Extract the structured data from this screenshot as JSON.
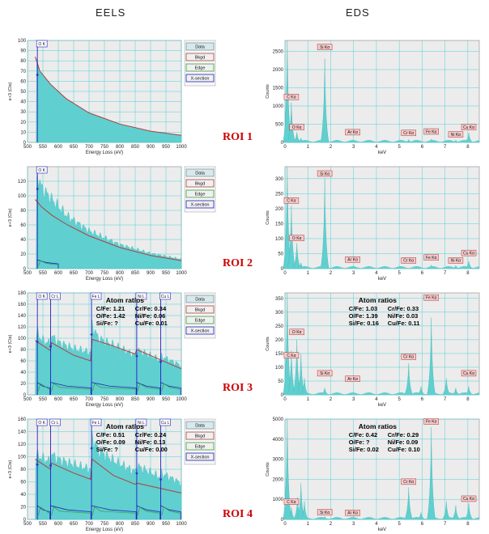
{
  "headers": {
    "eels": "EELS",
    "eds": "EDS"
  },
  "roi_labels": [
    "ROI 1",
    "ROI 2",
    "ROI 3",
    "ROI 4"
  ],
  "legend": [
    "Data",
    "Bkgd",
    "Edge",
    "X-section"
  ],
  "colors": {
    "fill": "#5fcfcf",
    "plot_bg": "#ececec",
    "grid": "#4fd0d8",
    "bkgd": "#b04040",
    "edge": "#3a9a3a",
    "xsec": "#2020c0",
    "marker": "#3030c8",
    "tag_bg": "#f4cccc",
    "tag_border": "#b03030",
    "roi_text": "#cc0000"
  },
  "chart_data": [
    {
      "type": "area",
      "panel": "EELS ROI 1",
      "xlabel": "Energy Loss (eV)",
      "ylabel": "e+3 (Cts)",
      "xlim": [
        500,
        1000
      ],
      "ylim": [
        0,
        100
      ],
      "xticks": [
        500,
        550,
        600,
        650,
        700,
        750,
        800,
        850,
        900,
        950,
        1000
      ],
      "yticks": [
        0,
        10,
        20,
        30,
        40,
        50,
        60,
        70,
        80,
        90,
        100
      ],
      "signal": [
        [
          528,
          84
        ],
        [
          540,
          70
        ],
        [
          575,
          57
        ],
        [
          625,
          43
        ],
        [
          700,
          29
        ],
        [
          800,
          18
        ],
        [
          900,
          11
        ],
        [
          1000,
          7
        ]
      ],
      "bkgd": [
        [
          525,
          84
        ],
        [
          540,
          70
        ],
        [
          575,
          57
        ],
        [
          625,
          43
        ],
        [
          700,
          29
        ],
        [
          800,
          18
        ],
        [
          900,
          11
        ],
        [
          1000,
          7
        ]
      ],
      "edges": [
        {
          "label": "O K",
          "x": 532
        }
      ],
      "ratios": null
    },
    {
      "type": "area",
      "panel": "EELS ROI 2",
      "xlabel": "Energy Loss (eV)",
      "ylabel": "e+3 (Cts)",
      "xlim": [
        500,
        1000
      ],
      "ylim": [
        0,
        140
      ],
      "xticks": [
        500,
        550,
        600,
        650,
        700,
        750,
        800,
        850,
        900,
        950,
        1000
      ],
      "yticks": [
        0,
        20,
        40,
        60,
        80,
        100,
        120
      ],
      "signal": [
        [
          528,
          110
        ],
        [
          532,
          130
        ],
        [
          545,
          112
        ],
        [
          580,
          95
        ],
        [
          630,
          72
        ],
        [
          700,
          52
        ],
        [
          800,
          33
        ],
        [
          900,
          21
        ],
        [
          1000,
          13
        ]
      ],
      "bkgd": [
        [
          525,
          95
        ],
        [
          545,
          85
        ],
        [
          580,
          73
        ],
        [
          630,
          60
        ],
        [
          700,
          45
        ],
        [
          800,
          29
        ],
        [
          900,
          18
        ],
        [
          1000,
          11
        ]
      ],
      "edges": [
        {
          "label": "O K",
          "x": 532
        }
      ],
      "ratios": null
    },
    {
      "type": "area",
      "panel": "EELS ROI 3",
      "xlabel": "Energy Loss (eV)",
      "ylabel": "e+3 (Cts)",
      "xlim": [
        500,
        1000
      ],
      "ylim": [
        0,
        180
      ],
      "xticks": [
        500,
        550,
        600,
        650,
        700,
        750,
        800,
        850,
        900,
        950,
        1000
      ],
      "yticks": [
        0,
        20,
        40,
        60,
        80,
        100,
        120,
        140,
        160,
        180
      ],
      "signal": [
        [
          525,
          96
        ],
        [
          533,
          110
        ],
        [
          545,
          98
        ],
        [
          575,
          90
        ],
        [
          578,
          104
        ],
        [
          600,
          93
        ],
        [
          650,
          82
        ],
        [
          706,
          75
        ],
        [
          710,
          124
        ],
        [
          730,
          100
        ],
        [
          780,
          88
        ],
        [
          850,
          70
        ],
        [
          855,
          80
        ],
        [
          930,
          62
        ],
        [
          935,
          68
        ],
        [
          1000,
          52
        ]
      ],
      "bkgd": [
        [
          525,
          96
        ],
        [
          575,
          78
        ],
        [
          578,
          92
        ],
        [
          650,
          70
        ],
        [
          705,
          60
        ],
        [
          710,
          98
        ],
        [
          780,
          86
        ],
        [
          850,
          72
        ],
        [
          855,
          80
        ],
        [
          1000,
          46
        ]
      ],
      "edges": [
        {
          "label": "O K",
          "x": 532
        },
        {
          "label": "Cr L",
          "x": 575
        },
        {
          "label": "Fe L",
          "x": 708
        },
        {
          "label": "Ni L",
          "x": 855
        },
        {
          "label": "Cu L",
          "x": 933
        }
      ],
      "ratios": {
        "title": "Atom ratios",
        "rows": [
          [
            "C/Fe: 1.21",
            "Cr/Fe: 0.34"
          ],
          [
            "O/Fe: 1.42",
            "Ni/Fe: 0.06"
          ],
          [
            "Si/Fe:      ?",
            "Cu/Fe: 0.01"
          ]
        ]
      }
    },
    {
      "type": "area",
      "panel": "EELS ROI 4",
      "xlabel": "Energy Loss (eV)",
      "ylabel": "e+3 (Cts)",
      "xlim": [
        500,
        1000
      ],
      "ylim": [
        0,
        160
      ],
      "xticks": [
        500,
        550,
        600,
        650,
        700,
        750,
        800,
        850,
        900,
        950,
        1000
      ],
      "yticks": [
        0,
        20,
        40,
        60,
        80,
        100,
        120,
        140,
        160
      ],
      "signal": [
        [
          525,
          96
        ],
        [
          533,
          102
        ],
        [
          575,
          92
        ],
        [
          578,
          104
        ],
        [
          600,
          96
        ],
        [
          650,
          88
        ],
        [
          706,
          80
        ],
        [
          710,
          132
        ],
        [
          730,
          110
        ],
        [
          780,
          94
        ],
        [
          850,
          76
        ],
        [
          855,
          86
        ],
        [
          930,
          68
        ],
        [
          935,
          74
        ],
        [
          1000,
          58
        ]
      ],
      "bkgd": [
        [
          525,
          96
        ],
        [
          575,
          80
        ],
        [
          578,
          90
        ],
        [
          650,
          74
        ],
        [
          705,
          64
        ],
        [
          710,
          96
        ],
        [
          780,
          70
        ],
        [
          850,
          56
        ],
        [
          855,
          58
        ],
        [
          1000,
          42
        ]
      ],
      "edges": [
        {
          "label": "O K",
          "x": 532
        },
        {
          "label": "Cr L",
          "x": 575
        },
        {
          "label": "Fe L",
          "x": 708
        },
        {
          "label": "Ni L",
          "x": 855
        },
        {
          "label": "Cu L",
          "x": 933
        }
      ],
      "ratios": {
        "title": "Atom ratios",
        "rows": [
          [
            "C/Fe: 0.51",
            "Cr/Fe: 0.24"
          ],
          [
            "O/Fe: 0.09",
            "Ni/Fe: 0.13"
          ],
          [
            "Si/Fe:      ?",
            "Cu/Fe: 0.00"
          ]
        ]
      }
    },
    {
      "type": "bar",
      "panel": "EDS ROI 1",
      "xlabel": "keV",
      "ylabel": "Counts",
      "xlim": [
        0,
        8.5
      ],
      "ylim": [
        0,
        2800
      ],
      "xticks": [
        0,
        1,
        2,
        3,
        4,
        5,
        6,
        7,
        8
      ],
      "yticks": [
        0,
        500,
        1000,
        1500,
        2000,
        2500
      ],
      "peaks": [
        [
          0.1,
          2800
        ],
        [
          0.28,
          1100
        ],
        [
          0.52,
          280
        ],
        [
          0.7,
          120
        ],
        [
          1.74,
          2300
        ],
        [
          5.41,
          80
        ],
        [
          6.4,
          90
        ],
        [
          7.06,
          40
        ],
        [
          7.47,
          60
        ],
        [
          8.04,
          260
        ]
      ],
      "tags": [
        {
          "label": "Si Kα",
          "x": 1.74,
          "y": 2520
        },
        {
          "label": "C Kα",
          "x": 0.28,
          "y": 1150
        },
        {
          "label": "O Kα",
          "x": 0.52,
          "y": 320
        },
        {
          "label": "Ar Kα",
          "x": 2.96,
          "y": 180
        },
        {
          "label": "Cr Kα",
          "x": 5.41,
          "y": 160
        },
        {
          "label": "Fe Kα",
          "x": 6.4,
          "y": 200
        },
        {
          "label": "Ni Kα",
          "x": 7.47,
          "y": 120
        },
        {
          "label": "Cu Kα",
          "x": 8.04,
          "y": 320
        }
      ],
      "ratios": null
    },
    {
      "type": "bar",
      "panel": "EDS ROI 2",
      "xlabel": "keV",
      "ylabel": "Counts",
      "xlim": [
        0,
        8.5
      ],
      "ylim": [
        0,
        340
      ],
      "xticks": [
        0,
        1,
        2,
        3,
        4,
        5,
        6,
        7,
        8
      ],
      "yticks": [
        0,
        50,
        100,
        150,
        200,
        250,
        300
      ],
      "peaks": [
        [
          0.1,
          340
        ],
        [
          0.28,
          210
        ],
        [
          0.52,
          85
        ],
        [
          0.7,
          20
        ],
        [
          1.74,
          300
        ],
        [
          6.4,
          12
        ],
        [
          7.47,
          10
        ],
        [
          8.04,
          25
        ]
      ],
      "tags": [
        {
          "label": "Si Kα",
          "x": 1.74,
          "y": 305
        },
        {
          "label": "C Kα",
          "x": 0.28,
          "y": 215
        },
        {
          "label": "O Kα",
          "x": 0.52,
          "y": 90
        },
        {
          "label": "Ar Kα",
          "x": 2.96,
          "y": 18
        },
        {
          "label": "Cr Kα",
          "x": 5.41,
          "y": 15
        },
        {
          "label": "Fe Kα",
          "x": 6.4,
          "y": 25
        },
        {
          "label": "Ni Kα",
          "x": 7.47,
          "y": 15
        },
        {
          "label": "Cu Kα",
          "x": 8.04,
          "y": 40
        }
      ],
      "ratios": null
    },
    {
      "type": "bar",
      "panel": "EDS ROI 3",
      "xlabel": "keV",
      "ylabel": "Counts",
      "xlim": [
        0,
        8.5
      ],
      "ylim": [
        0,
        370
      ],
      "xticks": [
        0,
        1,
        2,
        3,
        4,
        5,
        6,
        7,
        8
      ],
      "yticks": [
        0,
        50,
        100,
        150,
        200,
        250,
        300,
        350
      ],
      "peaks": [
        [
          0.1,
          370
        ],
        [
          0.28,
          160
        ],
        [
          0.52,
          200
        ],
        [
          0.7,
          150
        ],
        [
          0.85,
          60
        ],
        [
          1.74,
          25
        ],
        [
          2.96,
          8
        ],
        [
          5.41,
          115
        ],
        [
          5.95,
          30
        ],
        [
          6.4,
          280
        ],
        [
          7.06,
          60
        ],
        [
          7.47,
          25
        ],
        [
          8.04,
          30
        ]
      ],
      "tags": [
        {
          "label": "Fe Kα",
          "x": 6.4,
          "y": 340
        },
        {
          "label": "O Kα",
          "x": 0.52,
          "y": 215
        },
        {
          "label": "C Kα",
          "x": 0.28,
          "y": 130
        },
        {
          "label": "Cr Kα",
          "x": 5.41,
          "y": 125
        },
        {
          "label": "Si Kα",
          "x": 1.74,
          "y": 65
        },
        {
          "label": "Ar Kα",
          "x": 2.96,
          "y": 45
        },
        {
          "label": "Cu Kα",
          "x": 8.04,
          "y": 65
        }
      ],
      "ratios": {
        "title": "Atom ratios",
        "rows": [
          [
            "C/Fe: 1.03",
            "Cr/Fe: 0.33"
          ],
          [
            "O/Fe: 1.39",
            "Ni/Fe: 0.03"
          ],
          [
            "Si/Fe: 0.16",
            "Cu/Fe: 0.11"
          ]
        ]
      }
    },
    {
      "type": "bar",
      "panel": "EDS ROI 4",
      "xlabel": "keV",
      "ylabel": "Counts",
      "xlim": [
        0,
        8.5
      ],
      "ylim": [
        0,
        5000
      ],
      "xticks": [
        0,
        1,
        2,
        3,
        4,
        5,
        6,
        7,
        8
      ],
      "yticks": [
        0,
        1000,
        2000,
        3000,
        4000,
        5000
      ],
      "peaks": [
        [
          0.1,
          5000
        ],
        [
          0.28,
          600
        ],
        [
          0.55,
          1100
        ],
        [
          0.7,
          1800
        ],
        [
          0.85,
          900
        ],
        [
          1.74,
          150
        ],
        [
          5.41,
          1600
        ],
        [
          5.95,
          350
        ],
        [
          6.4,
          4600
        ],
        [
          7.06,
          900
        ],
        [
          7.47,
          700
        ],
        [
          8.04,
          800
        ]
      ],
      "tags": [
        {
          "label": "Fe Kα",
          "x": 6.4,
          "y": 4700
        },
        {
          "label": "Cr Kα",
          "x": 5.41,
          "y": 1700
        },
        {
          "label": "C Kα",
          "x": 0.28,
          "y": 700
        },
        {
          "label": "Si Kα",
          "x": 1.74,
          "y": 180
        },
        {
          "label": "Ar Kα",
          "x": 2.96,
          "y": 150
        },
        {
          "label": "Cu Kα",
          "x": 8.04,
          "y": 850
        }
      ],
      "ratios": {
        "title": "Atom ratios",
        "rows": [
          [
            "C/Fe: 0.42",
            "Cr/Fe: 0.29"
          ],
          [
            "O/Fe:      ?",
            "Ni/Fe: 0.09"
          ],
          [
            "Si/Fe: 0.02",
            "Cu/Fe: 0.10"
          ]
        ]
      }
    }
  ]
}
